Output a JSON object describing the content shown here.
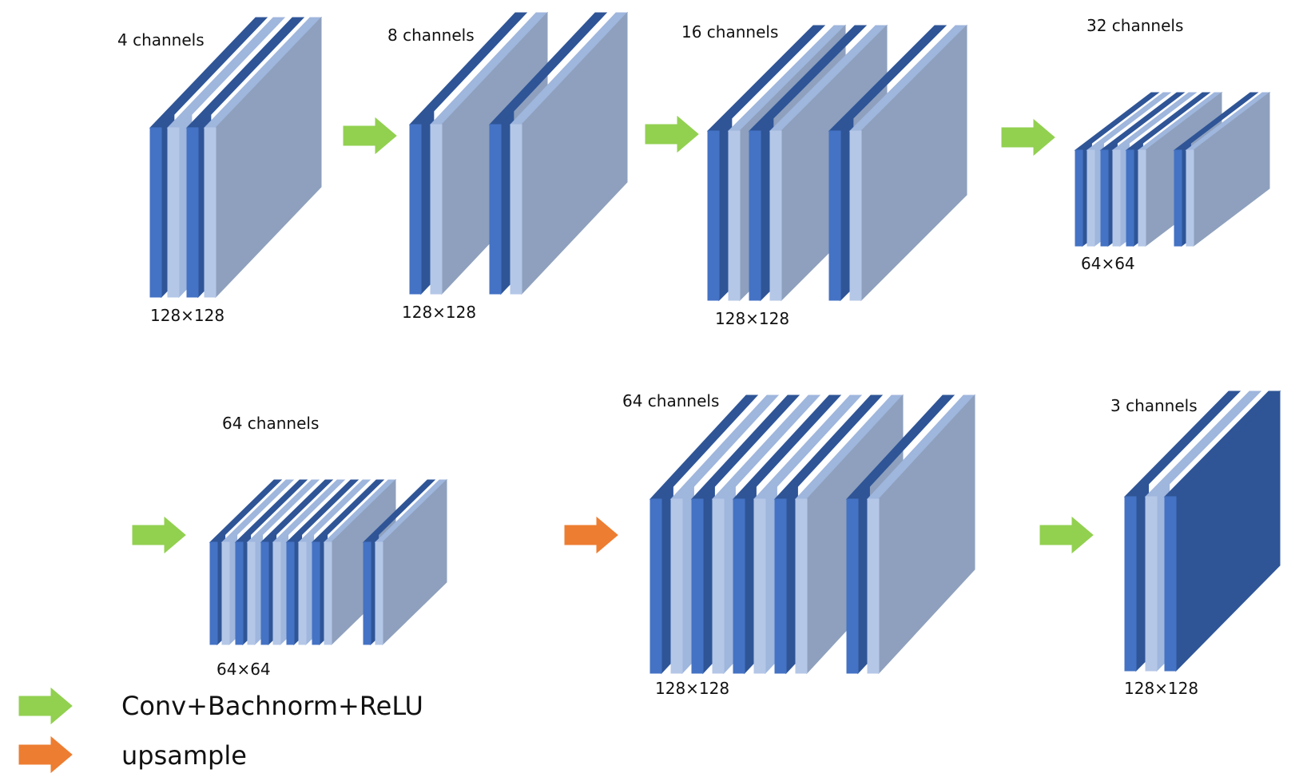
{
  "blocks": [
    {
      "channels_label": "4 channels",
      "size_label": "128×128"
    },
    {
      "channels_label": "8 channels",
      "size_label": "128×128"
    },
    {
      "channels_label": "16 channels",
      "size_label": "128×128"
    },
    {
      "channels_label": "32 channels",
      "size_label": "64×64"
    },
    {
      "channels_label": "64 channels",
      "size_label": "64×64"
    },
    {
      "channels_label": "64 channels",
      "size_label": "128×128"
    },
    {
      "channels_label": "3 channels",
      "size_label": "128×128"
    }
  ],
  "legend": {
    "conv_label": "Conv+Bachnorm+ReLU",
    "upsample_label": "upsample"
  },
  "colors": {
    "dark_blue": "#4472c4",
    "darker_blue": "#2f5597",
    "light_blue": "#b4c7e7",
    "gray_face": "#8ea0bd",
    "conv_arrow": "#92d050",
    "upsample_arrow": "#ed7d31"
  }
}
